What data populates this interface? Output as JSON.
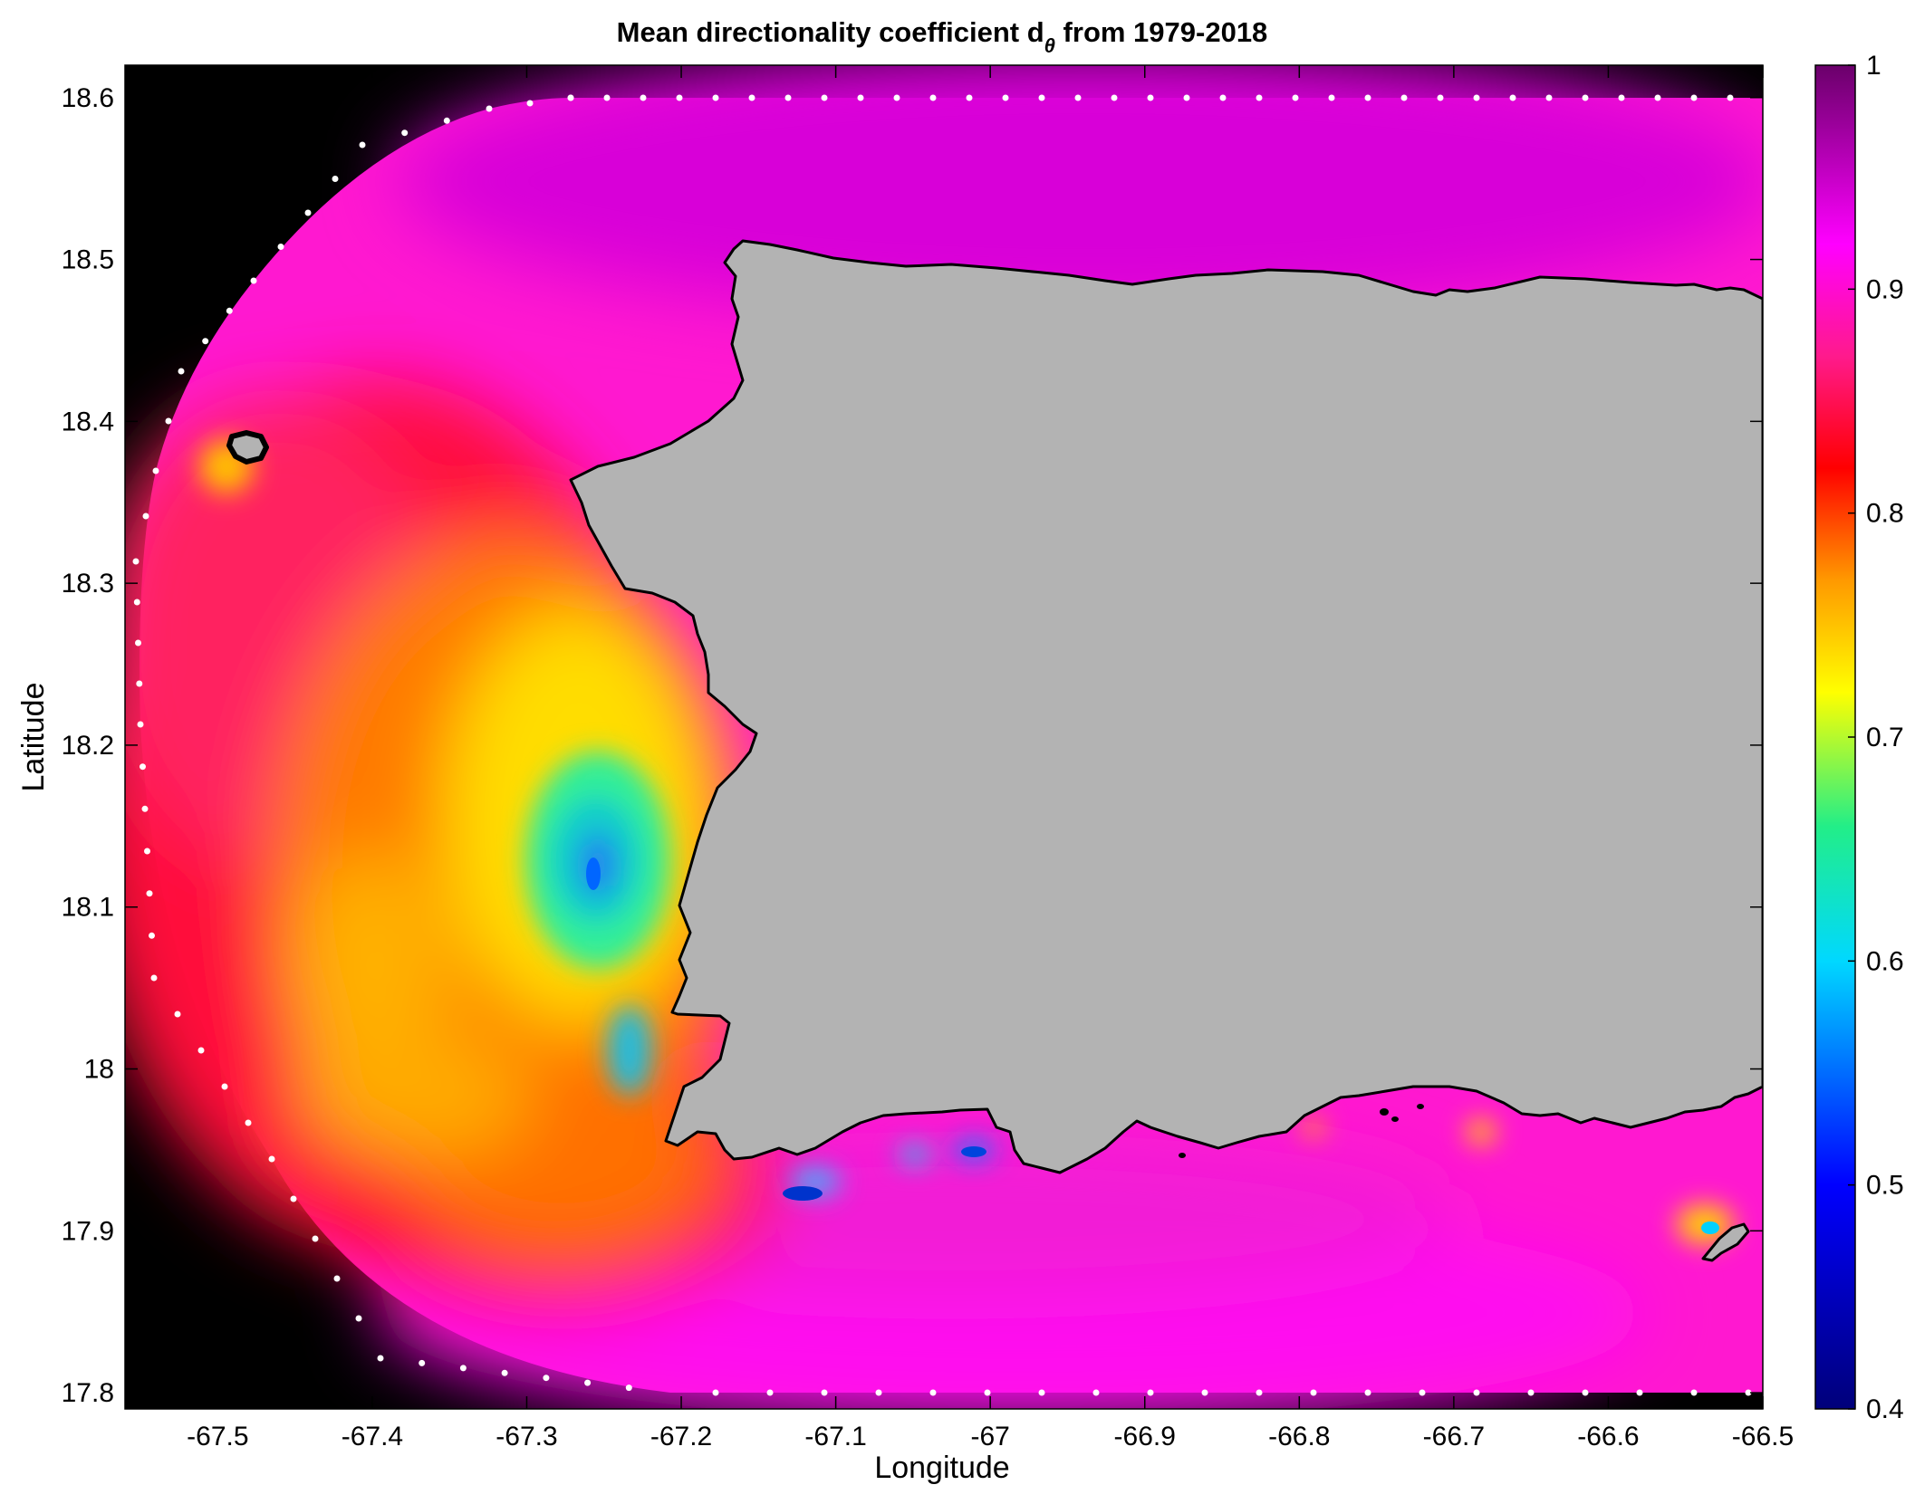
{
  "title": {
    "main": "Mean directionality coefficient d",
    "subscript": "θ",
    "suffix": " from 1979-2018"
  },
  "axes": {
    "xlabel": "Longitude",
    "ylabel": "Latitude",
    "xlim": [
      -67.56,
      -66.5
    ],
    "ylim": [
      17.79,
      18.62
    ],
    "xticks": [
      "-67.5",
      "-67.4",
      "-67.3",
      "-67.2",
      "-67.1",
      "-67",
      "-66.9",
      "-66.8",
      "-66.7",
      "-66.6",
      "-66.5"
    ],
    "xtick_values": [
      -67.5,
      -67.4,
      -67.3,
      -67.2,
      -67.1,
      -67.0,
      -66.9,
      -66.8,
      -66.7,
      -66.6,
      -66.5
    ],
    "yticks": [
      "17.8",
      "17.9",
      "18",
      "18.1",
      "18.2",
      "18.3",
      "18.4",
      "18.5",
      "18.6"
    ],
    "ytick_values": [
      17.8,
      17.9,
      18.0,
      18.1,
      18.2,
      18.3,
      18.4,
      18.5,
      18.6
    ]
  },
  "colorbar": {
    "range": [
      0.4,
      1.0
    ],
    "ticks": [
      "0.4",
      "0.5",
      "0.6",
      "0.7",
      "0.8",
      "0.9",
      "1"
    ],
    "tick_values": [
      0.4,
      0.5,
      0.6,
      0.7,
      0.8,
      0.9,
      1.0
    ],
    "stops": [
      {
        "v": 0.4,
        "color": "#00007a"
      },
      {
        "v": 0.5,
        "color": "#0000ff"
      },
      {
        "v": 0.6,
        "color": "#00d8ff"
      },
      {
        "v": 0.66,
        "color": "#22ee88"
      },
      {
        "v": 0.72,
        "color": "#ffff00"
      },
      {
        "v": 0.77,
        "color": "#ff9900"
      },
      {
        "v": 0.82,
        "color": "#ff0000"
      },
      {
        "v": 0.87,
        "color": "#ff1a8c"
      },
      {
        "v": 0.92,
        "color": "#ff00ff"
      },
      {
        "v": 0.96,
        "color": "#b400b4"
      },
      {
        "v": 1.0,
        "color": "#6a006a"
      }
    ]
  },
  "colors": {
    "land": "#b3b3b3",
    "outside_domain": "#000000",
    "coastline": "#000000",
    "boundary_points": "#ffffff"
  },
  "chart_data": {
    "type": "heatmap",
    "title": "Mean directionality coefficient dθ from 1979-2018",
    "xlabel": "Longitude",
    "ylabel": "Latitude",
    "xlim": [
      -67.56,
      -66.5
    ],
    "ylim": [
      17.79,
      18.62
    ],
    "colorbar_range": [
      0.4,
      1.0
    ],
    "regions": [
      {
        "lon": -67.45,
        "lat": 18.5,
        "value": 0.92
      },
      {
        "lon": -67.0,
        "lat": 18.58,
        "value": 0.93
      },
      {
        "lon": -67.35,
        "lat": 18.15,
        "value": 0.8
      },
      {
        "lon": -67.3,
        "lat": 18.1,
        "value": 0.77
      },
      {
        "lon": -67.26,
        "lat": 18.13,
        "value": 0.62
      },
      {
        "lon": -67.24,
        "lat": 18.02,
        "value": 0.62
      },
      {
        "lon": -67.2,
        "lat": 17.88,
        "value": 0.85
      },
      {
        "lon": -66.9,
        "lat": 17.85,
        "value": 0.9
      },
      {
        "lon": -66.53,
        "lat": 17.9,
        "value": 0.72
      }
    ]
  }
}
